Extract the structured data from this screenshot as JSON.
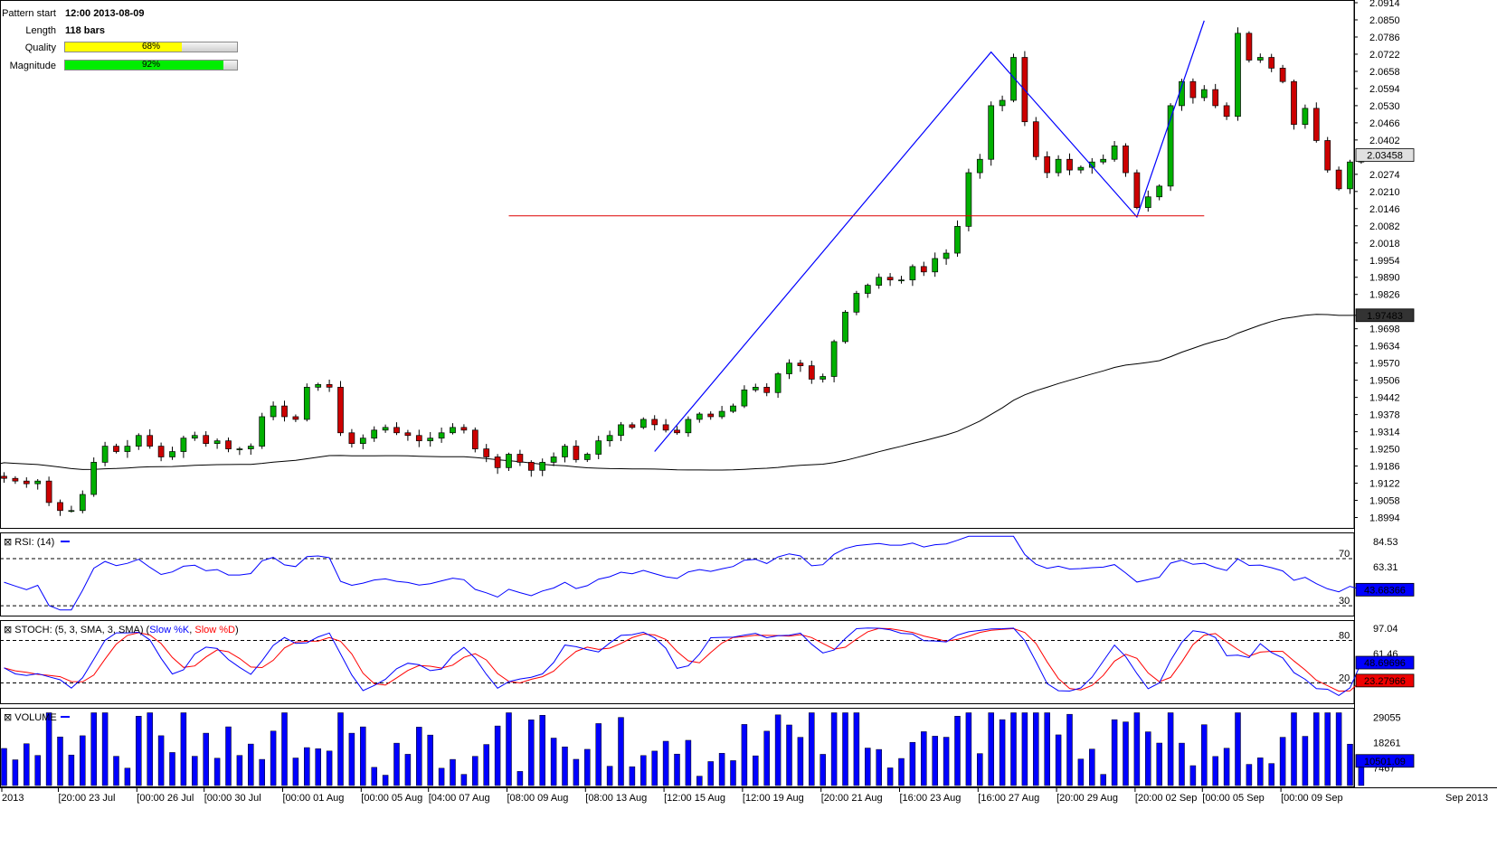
{
  "info": {
    "pattern_start_label": "Pattern start",
    "pattern_start_value": "12:00 2013-08-09",
    "length_label": "Length",
    "length_value": "118 bars",
    "quality_label": "Quality",
    "quality_value": "68%",
    "quality_fraction": 0.68,
    "quality_color": "#ffff00",
    "magnitude_label": "Magnitude",
    "magnitude_value": "92%",
    "magnitude_fraction": 0.92,
    "magnitude_color": "#00ee00"
  },
  "chart_data": [
    {
      "type": "candlestick",
      "panel": "price",
      "ylim": [
        1.8962,
        2.0914
      ],
      "y_ticks": [
        "2.0914",
        "2.0850",
        "2.0786",
        "2.0722",
        "2.0658",
        "2.0594",
        "2.0530",
        "2.0466",
        "2.0402",
        "2.0274",
        "2.0210",
        "2.0146",
        "2.0082",
        "2.0018",
        "1.9954",
        "1.9890",
        "1.9826",
        "1.9698",
        "1.9634",
        "1.9570",
        "1.9506",
        "1.9442",
        "1.9378",
        "1.9314",
        "1.9250",
        "1.9186",
        "1.9122",
        "1.9058",
        "1.8994"
      ],
      "current_price": "2.03458",
      "ma_value": "1.97483",
      "support_level": 2.0119,
      "pattern_points": [
        [
          58,
          1.924
        ],
        [
          88,
          2.073
        ],
        [
          101,
          2.0115
        ],
        [
          107,
          2.0847
        ]
      ],
      "ma_start": 1.92,
      "closes": [
        1.914,
        1.913,
        1.912,
        1.913,
        1.905,
        1.902,
        1.902,
        1.908,
        1.92,
        1.926,
        1.924,
        1.926,
        1.93,
        1.926,
        1.922,
        1.924,
        1.929,
        1.93,
        1.927,
        1.928,
        1.925,
        1.925,
        1.926,
        1.937,
        1.941,
        1.937,
        1.936,
        1.948,
        1.949,
        1.948,
        1.931,
        1.927,
        1.929,
        1.932,
        1.933,
        1.931,
        1.93,
        1.928,
        1.929,
        1.931,
        1.933,
        1.932,
        1.925,
        1.922,
        1.918,
        1.923,
        1.92,
        1.917,
        1.92,
        1.922,
        1.926,
        1.921,
        1.923,
        1.928,
        1.93,
        1.934,
        1.933,
        1.936,
        1.934,
        1.932,
        1.931,
        1.936,
        1.938,
        1.937,
        1.939,
        1.941,
        1.947,
        1.948,
        1.946,
        1.953,
        1.957,
        1.956,
        1.951,
        1.952,
        1.965,
        1.976,
        1.983,
        1.986,
        1.989,
        1.988,
        1.988,
        1.993,
        1.991,
        1.996,
        1.998,
        2.008,
        2.028,
        2.033,
        2.053,
        2.055,
        2.071,
        2.047,
        2.034,
        2.028,
        2.033,
        2.029,
        2.03,
        2.032,
        2.033,
        2.038,
        2.028,
        2.015,
        2.019,
        2.023,
        2.053,
        2.062,
        2.056,
        2.059,
        2.053,
        2.049,
        2.08,
        2.07,
        2.071,
        2.067,
        2.062,
        2.046,
        2.052,
        2.04,
        2.029,
        2.022,
        2.032,
        2.0346
      ]
    },
    {
      "type": "line",
      "panel": "rsi",
      "title": "RSI: (14)",
      "ylim": [
        24,
        90
      ],
      "levels": [
        70,
        30
      ],
      "y_ticks": [
        "84.53",
        "63.31"
      ],
      "current_value": "43.68366"
    },
    {
      "type": "line",
      "panel": "stoch",
      "title": "STOCH: (5, 3, SMA, 3, SMA)",
      "legend": [
        "Slow %K",
        "Slow %D"
      ],
      "ylim": [
        -5,
        105
      ],
      "levels": [
        80,
        20
      ],
      "y_ticks": [
        "97.04",
        "61.46"
      ],
      "k_current": "48.69696",
      "d_current": "23.27966"
    },
    {
      "type": "bar",
      "panel": "volume",
      "title": "VOLUME",
      "ylim": [
        0,
        32000
      ],
      "y_ticks": [
        "29055",
        "18261",
        "7467"
      ],
      "current_value": "10501.09"
    }
  ],
  "x_labels": [
    {
      "bar": -1,
      "text": "2013"
    },
    {
      "bar": 5,
      "text": "[20:00 23 Jul"
    },
    {
      "bar": 12,
      "text": "[00:00 26 Jul"
    },
    {
      "bar": 18,
      "text": "[00:00 30 Jul"
    },
    {
      "bar": 25,
      "text": "[00:00 01 Aug"
    },
    {
      "bar": 32,
      "text": "[00:00 05 Aug"
    },
    {
      "bar": 38,
      "text": "[04:00 07 Aug"
    },
    {
      "bar": 45,
      "text": "[08:00 09 Aug"
    },
    {
      "bar": 52,
      "text": "[08:00 13 Aug"
    },
    {
      "bar": 59,
      "text": "[12:00 15 Aug"
    },
    {
      "bar": 66,
      "text": "[12:00 19 Aug"
    },
    {
      "bar": 73,
      "text": "[20:00 21 Aug"
    },
    {
      "bar": 80,
      "text": "[16:00 23 Aug"
    },
    {
      "bar": 87,
      "text": "[16:00 27 Aug"
    },
    {
      "bar": 94,
      "text": "[20:00 29 Aug"
    },
    {
      "bar": 101,
      "text": "[20:00 02 Sep"
    },
    {
      "bar": 107,
      "text": "[00:00 05 Sep"
    },
    {
      "bar": 114,
      "text": "[00:00 09 Sep"
    }
  ],
  "x_corner_label": "Sep 2013",
  "level_labels": {
    "rsi_hi": "70",
    "rsi_lo": "30",
    "stoch_hi": "80",
    "stoch_lo": "20"
  },
  "colors": {
    "up": "#00b000",
    "down": "#cc0000",
    "pattern": "#0000ff",
    "support": "#dd0000",
    "ma": "#000000",
    "rsi": "#0000ff",
    "stoch_k": "#0000ff",
    "stoch_d": "#ff0000",
    "volume": "#0000ff",
    "label_blue": "#0000ff",
    "label_red": "#ee0000",
    "label_dark": "#333333"
  }
}
